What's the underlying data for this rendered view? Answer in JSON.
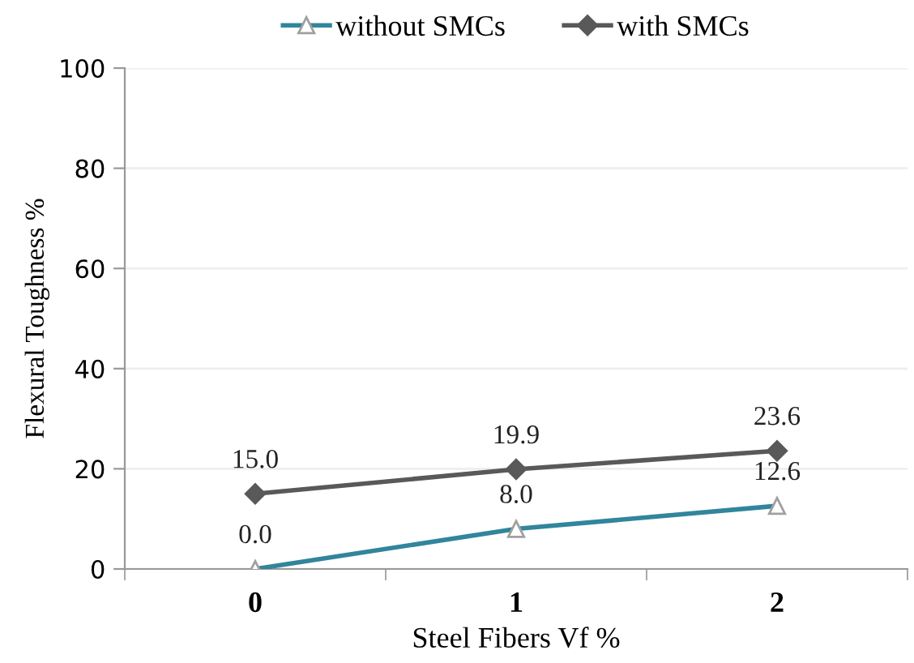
{
  "chart_data": {
    "type": "line",
    "xlabel": "Steel Fibers Vf %",
    "ylabel": "Flexural Toughness %",
    "categories": [
      "0",
      "1",
      "2"
    ],
    "series": [
      {
        "name": "without SMCs",
        "color": "#31859c",
        "marker": "triangle",
        "values": [
          0.0,
          8.0,
          12.6
        ],
        "value_labels": [
          "0.0",
          "8.0",
          "12.6"
        ]
      },
      {
        "name": "with SMCs",
        "color": "#595959",
        "marker": "diamond",
        "values": [
          15.0,
          19.9,
          23.6
        ],
        "value_labels": [
          "15.0",
          "19.9",
          "23.6"
        ]
      }
    ],
    "ylim": [
      0,
      100
    ],
    "yticks": [
      0,
      20,
      40,
      60,
      80,
      100
    ],
    "grid": "y",
    "legend": "top",
    "line_style": "solid"
  }
}
